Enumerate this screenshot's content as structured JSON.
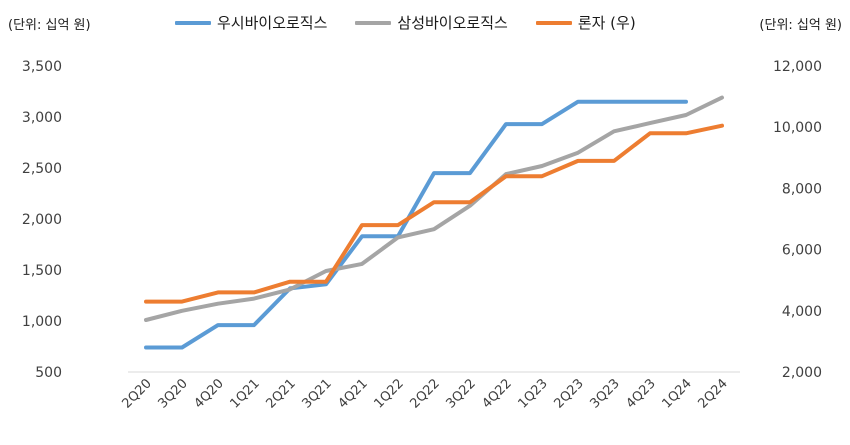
{
  "chart_data": {
    "type": "line",
    "left_unit_label": "(단위: 십억 원)",
    "right_unit_label": "(단위: 십억 원)",
    "categories": [
      "2Q20",
      "3Q20",
      "4Q20",
      "1Q21",
      "2Q21",
      "3Q21",
      "4Q21",
      "1Q22",
      "2Q22",
      "3Q22",
      "4Q22",
      "1Q23",
      "2Q23",
      "3Q23",
      "4Q23",
      "1Q24",
      "2Q24"
    ],
    "y_left": {
      "min": 500,
      "max": 3500,
      "ticks": [
        "500",
        "1,000",
        "1,500",
        "2,000",
        "2,500",
        "3,000",
        "3,500"
      ]
    },
    "y_right": {
      "min": 2000,
      "max": 12000,
      "ticks": [
        "2,000",
        "4,000",
        "6,000",
        "8,000",
        "10,000",
        "12,000"
      ]
    },
    "grid": false,
    "legend_position": "top",
    "series": [
      {
        "name": "우시바이오로직스",
        "axis": "left",
        "color": "#5b9bd5",
        "values": [
          740,
          740,
          960,
          960,
          1320,
          1360,
          1830,
          1830,
          2450,
          2450,
          2930,
          2930,
          3150,
          3150,
          3150,
          3150,
          null
        ]
      },
      {
        "name": "삼성바이오로직스",
        "axis": "left",
        "color": "#a5a5a5",
        "values": [
          1010,
          1100,
          1170,
          1220,
          1310,
          1490,
          1560,
          1820,
          1900,
          2130,
          2440,
          2520,
          2650,
          2860,
          2940,
          3020,
          3190
        ]
      },
      {
        "name": "론자 (우)",
        "axis": "right",
        "color": "#ed7d31",
        "values": [
          4300,
          4300,
          4600,
          4600,
          4950,
          4950,
          6800,
          6800,
          7550,
          7550,
          8400,
          8400,
          8900,
          8900,
          9800,
          9800,
          10050
        ]
      }
    ]
  }
}
